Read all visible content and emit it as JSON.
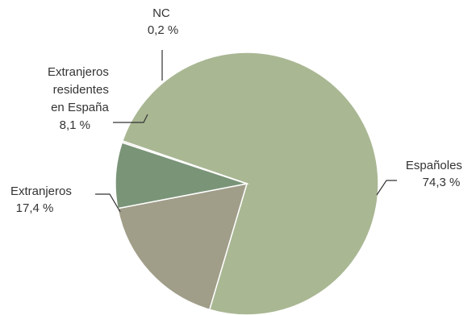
{
  "chart_data": {
    "type": "pie",
    "title": "",
    "slices": [
      {
        "label": "Españoles",
        "display": "74,3 %",
        "value": 74.3,
        "color": "#a9b793"
      },
      {
        "label": "Extranjeros",
        "display": "17,4 %",
        "value": 17.4,
        "color": "#a09d89"
      },
      {
        "label": "Extranjeros residentes en España",
        "display": "8,1 %",
        "value": 8.1,
        "color": "#7a9477"
      },
      {
        "label": "NC",
        "display": "0,2 %",
        "value": 0.2,
        "color": "#c8cfb8"
      }
    ],
    "legend": "none",
    "label_lines": {
      "espanoles": [
        "Españoles",
        "74,3 %"
      ],
      "extranjeros": [
        "Extranjeros",
        "17,4 %"
      ],
      "residentes": [
        "Extranjeros",
        "residentes",
        "en España",
        "8,1 %"
      ],
      "nc": [
        "NC",
        "0,2 %"
      ]
    }
  }
}
